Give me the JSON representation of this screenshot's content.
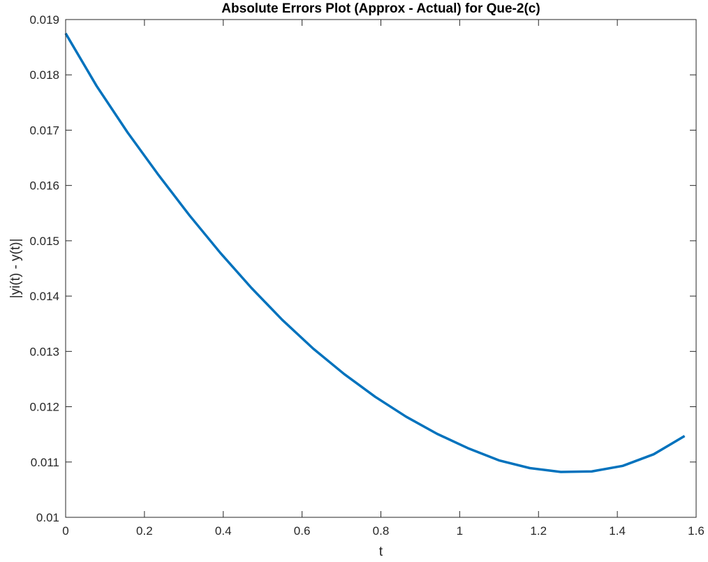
{
  "chart_data": {
    "type": "line",
    "title": "Absolute Errors Plot (Approx - Actual) for Que-2(c)",
    "xlabel": "t",
    "ylabel": "|yi(t) - y(t)|",
    "xlim": [
      0,
      1.6
    ],
    "ylim": [
      0.01,
      0.019
    ],
    "xticks": [
      0,
      0.2,
      0.4,
      0.6,
      0.8,
      1.0,
      1.2,
      1.4,
      1.6
    ],
    "xtick_labels": [
      "0",
      "0.2",
      "0.4",
      "0.6",
      "0.8",
      "1",
      "1.2",
      "1.4",
      "1.6"
    ],
    "yticks": [
      0.01,
      0.011,
      0.012,
      0.013,
      0.014,
      0.015,
      0.016,
      0.017,
      0.018,
      0.019
    ],
    "ytick_labels": [
      "0.01",
      "0.011",
      "0.012",
      "0.013",
      "0.014",
      "0.015",
      "0.016",
      "0.017",
      "0.018",
      "0.019"
    ],
    "grid": false,
    "box": true,
    "series": [
      {
        "color": "#0072BD",
        "x": [
          0,
          0.0785,
          0.1571,
          0.2356,
          0.3142,
          0.3927,
          0.4712,
          0.5498,
          0.6283,
          0.7069,
          0.7854,
          0.8639,
          0.9425,
          1.021,
          1.0996,
          1.1781,
          1.2566,
          1.3352,
          1.4137,
          1.4923,
          1.5708
        ],
        "y": [
          0.01875,
          0.0178,
          0.01696,
          0.01619,
          0.01546,
          0.01478,
          0.01415,
          0.01357,
          0.01305,
          0.01259,
          0.01218,
          0.01182,
          0.01151,
          0.01125,
          0.01103,
          0.01089,
          0.01082,
          0.01083,
          0.01093,
          0.01114,
          0.01147
        ]
      }
    ]
  }
}
